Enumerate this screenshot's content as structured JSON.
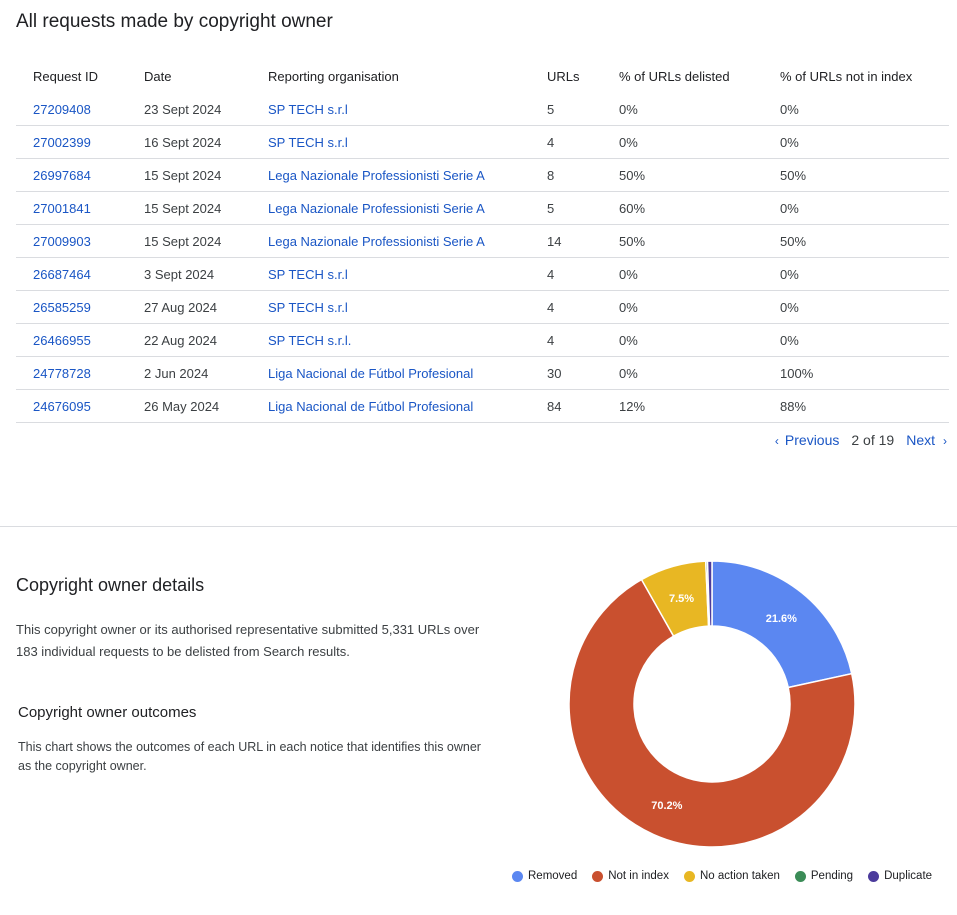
{
  "section_title": "All requests made by copyright owner",
  "table": {
    "headers": [
      "Request ID",
      "Date",
      "Reporting organisation",
      "URLs",
      "% of URLs delisted",
      "% of URLs not in index"
    ],
    "rows": [
      [
        "27209408",
        "23 Sept 2024",
        "SP TECH s.r.l",
        "5",
        "0%",
        "0%"
      ],
      [
        "27002399",
        "16 Sept 2024",
        "SP TECH s.r.l",
        "4",
        "0%",
        "0%"
      ],
      [
        "26997684",
        "15 Sept 2024",
        "Lega Nazionale Professionisti Serie A",
        "8",
        "50%",
        "50%"
      ],
      [
        "27001841",
        "15 Sept 2024",
        "Lega Nazionale Professionisti Serie A",
        "5",
        "60%",
        "0%"
      ],
      [
        "27009903",
        "15 Sept 2024",
        "Lega Nazionale Professionisti Serie A",
        "14",
        "50%",
        "50%"
      ],
      [
        "26687464",
        "3 Sept 2024",
        "SP TECH s.r.l",
        "4",
        "0%",
        "0%"
      ],
      [
        "26585259",
        "27 Aug 2024",
        "SP TECH s.r.l",
        "4",
        "0%",
        "0%"
      ],
      [
        "26466955",
        "22 Aug 2024",
        "SP TECH s.r.l.",
        "4",
        "0%",
        "0%"
      ],
      [
        "24778728",
        "2 Jun 2024",
        "Liga Nacional de Fútbol Profesional",
        "30",
        "0%",
        "100%"
      ],
      [
        "24676095",
        "26 May 2024",
        "Liga Nacional de Fútbol Profesional",
        "84",
        "12%",
        "88%"
      ]
    ]
  },
  "pagination": {
    "previous_label": "Previous",
    "page_info": "2 of 19",
    "next_label": "Next",
    "prev_icon": "chevron-left-icon",
    "next_icon": "chevron-right-icon"
  },
  "details": {
    "title": "Copyright owner details",
    "text": "This copyright owner or its authorised representative submitted 5,331 URLs over 183 individual requests to be delisted from Search results."
  },
  "outcomes": {
    "title": "Copyright owner outcomes",
    "text": "This chart shows the outcomes of each URL in each notice that identifies this owner as the copyright owner."
  },
  "chart_data": {
    "type": "pie",
    "donut": true,
    "title": "",
    "series": [
      {
        "name": "Removed",
        "value": 21.6,
        "color": "#5b87f1",
        "label": "21.6%"
      },
      {
        "name": "Not in index",
        "value": 70.2,
        "color": "#c9502f",
        "label": "70.2%"
      },
      {
        "name": "No action taken",
        "value": 7.5,
        "color": "#e8b723",
        "label": "7.5%"
      },
      {
        "name": "Pending",
        "value": 0.2,
        "color": "#3b8c57",
        "label": ""
      },
      {
        "name": "Duplicate",
        "value": 0.5,
        "color": "#4b3b9c",
        "label": ""
      }
    ],
    "legend": "bottom"
  }
}
